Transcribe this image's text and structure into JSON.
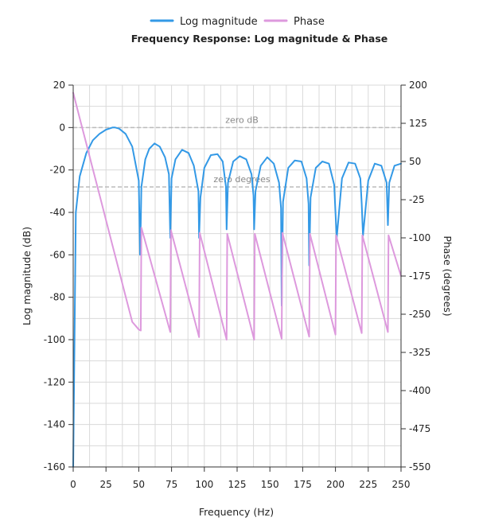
{
  "chart_data": {
    "type": "line",
    "title": "Frequency Response: Log magnitude & Phase",
    "xlabel": "Frequency (Hz)",
    "ylabel_left": "Log magnitude (dB)",
    "ylabel_right": "Phase (degrees)",
    "xlim": [
      0,
      250
    ],
    "ylim_left": [
      -160,
      20
    ],
    "ylim_right": [
      -550,
      200
    ],
    "x_ticks": [
      0,
      25,
      50,
      75,
      100,
      125,
      150,
      175,
      200,
      225,
      250
    ],
    "y_left_ticks": [
      20,
      0,
      -20,
      -40,
      -60,
      -80,
      -100,
      -120,
      -140,
      -160
    ],
    "y_right_ticks": [
      200,
      125,
      50,
      -25,
      -100,
      -175,
      -250,
      -325,
      -400,
      -475,
      -550
    ],
    "grid": true,
    "legend_position": "top-center",
    "colors": {
      "magnitude": "#3399e6",
      "phase": "#dd99dd",
      "refline": "#bbbbbb"
    },
    "series": [
      {
        "name": "Log magnitude",
        "axis": "left",
        "x": [
          0,
          2,
          5,
          10,
          15,
          20,
          25,
          30,
          32,
          35,
          40,
          45,
          50,
          51,
          51.5,
          52,
          55,
          58,
          62,
          66,
          70,
          73,
          74,
          75,
          78,
          83,
          88,
          92,
          95.5,
          96,
          97,
          100,
          105,
          110,
          114,
          116.5,
          117,
          118,
          122,
          127,
          132,
          136,
          137.5,
          138,
          139,
          143,
          148,
          153,
          157,
          158.5,
          159,
          160,
          164,
          169,
          174,
          178,
          179.5,
          180,
          181,
          185,
          190,
          195,
          199,
          200,
          201,
          205,
          210,
          215,
          219,
          220,
          221,
          225,
          230,
          235,
          239,
          240,
          241,
          245,
          250
        ],
        "values": [
          -160,
          -40,
          -23,
          -12,
          -6,
          -3,
          -1,
          0,
          0,
          -0.5,
          -3,
          -9,
          -25,
          -60,
          -45,
          -28,
          -15,
          -10,
          -7.5,
          -9,
          -14,
          -22,
          -52,
          -24,
          -15,
          -10.5,
          -12,
          -18,
          -30,
          -52,
          -33,
          -19,
          -13,
          -12.5,
          -16,
          -28,
          -48,
          -26,
          -16,
          -13.5,
          -15,
          -22,
          -32,
          -48,
          -30,
          -18,
          -14,
          -17,
          -26,
          -38,
          -84,
          -35,
          -19,
          -15.5,
          -16,
          -24,
          -36,
          -65,
          -33,
          -19,
          -16,
          -17,
          -27,
          -40,
          -52,
          -24,
          -16.5,
          -17,
          -24,
          -36,
          -51,
          -25,
          -17,
          -18,
          -26,
          -46,
          -26,
          -18,
          -17
        ]
      },
      {
        "name": "Phase",
        "axis": "right",
        "x": [
          0,
          5,
          10,
          15,
          20,
          25,
          30,
          35,
          40,
          45,
          50,
          51.5,
          52,
          74,
          74.5,
          96,
          96.5,
          117,
          117.5,
          138,
          138.5,
          159,
          159.5,
          180,
          180.5,
          200,
          200.5,
          220,
          220.5,
          240,
          240.5,
          250
        ],
        "values": [
          185,
          135,
          85,
          35,
          -15,
          -65,
          -115,
          -165,
          -215,
          -265,
          -280,
          -282,
          -80,
          -285,
          -85,
          -295,
          -90,
          -300,
          -92,
          -300,
          -92,
          -298,
          -90,
          -294,
          -92,
          -290,
          -95,
          -287,
          -95,
          -285,
          -95,
          -175
        ]
      }
    ],
    "reference_lines": [
      {
        "label": "zero dB",
        "axis": "left",
        "value": 0
      },
      {
        "label": "zero degrees",
        "axis": "right",
        "value": 0
      }
    ]
  }
}
